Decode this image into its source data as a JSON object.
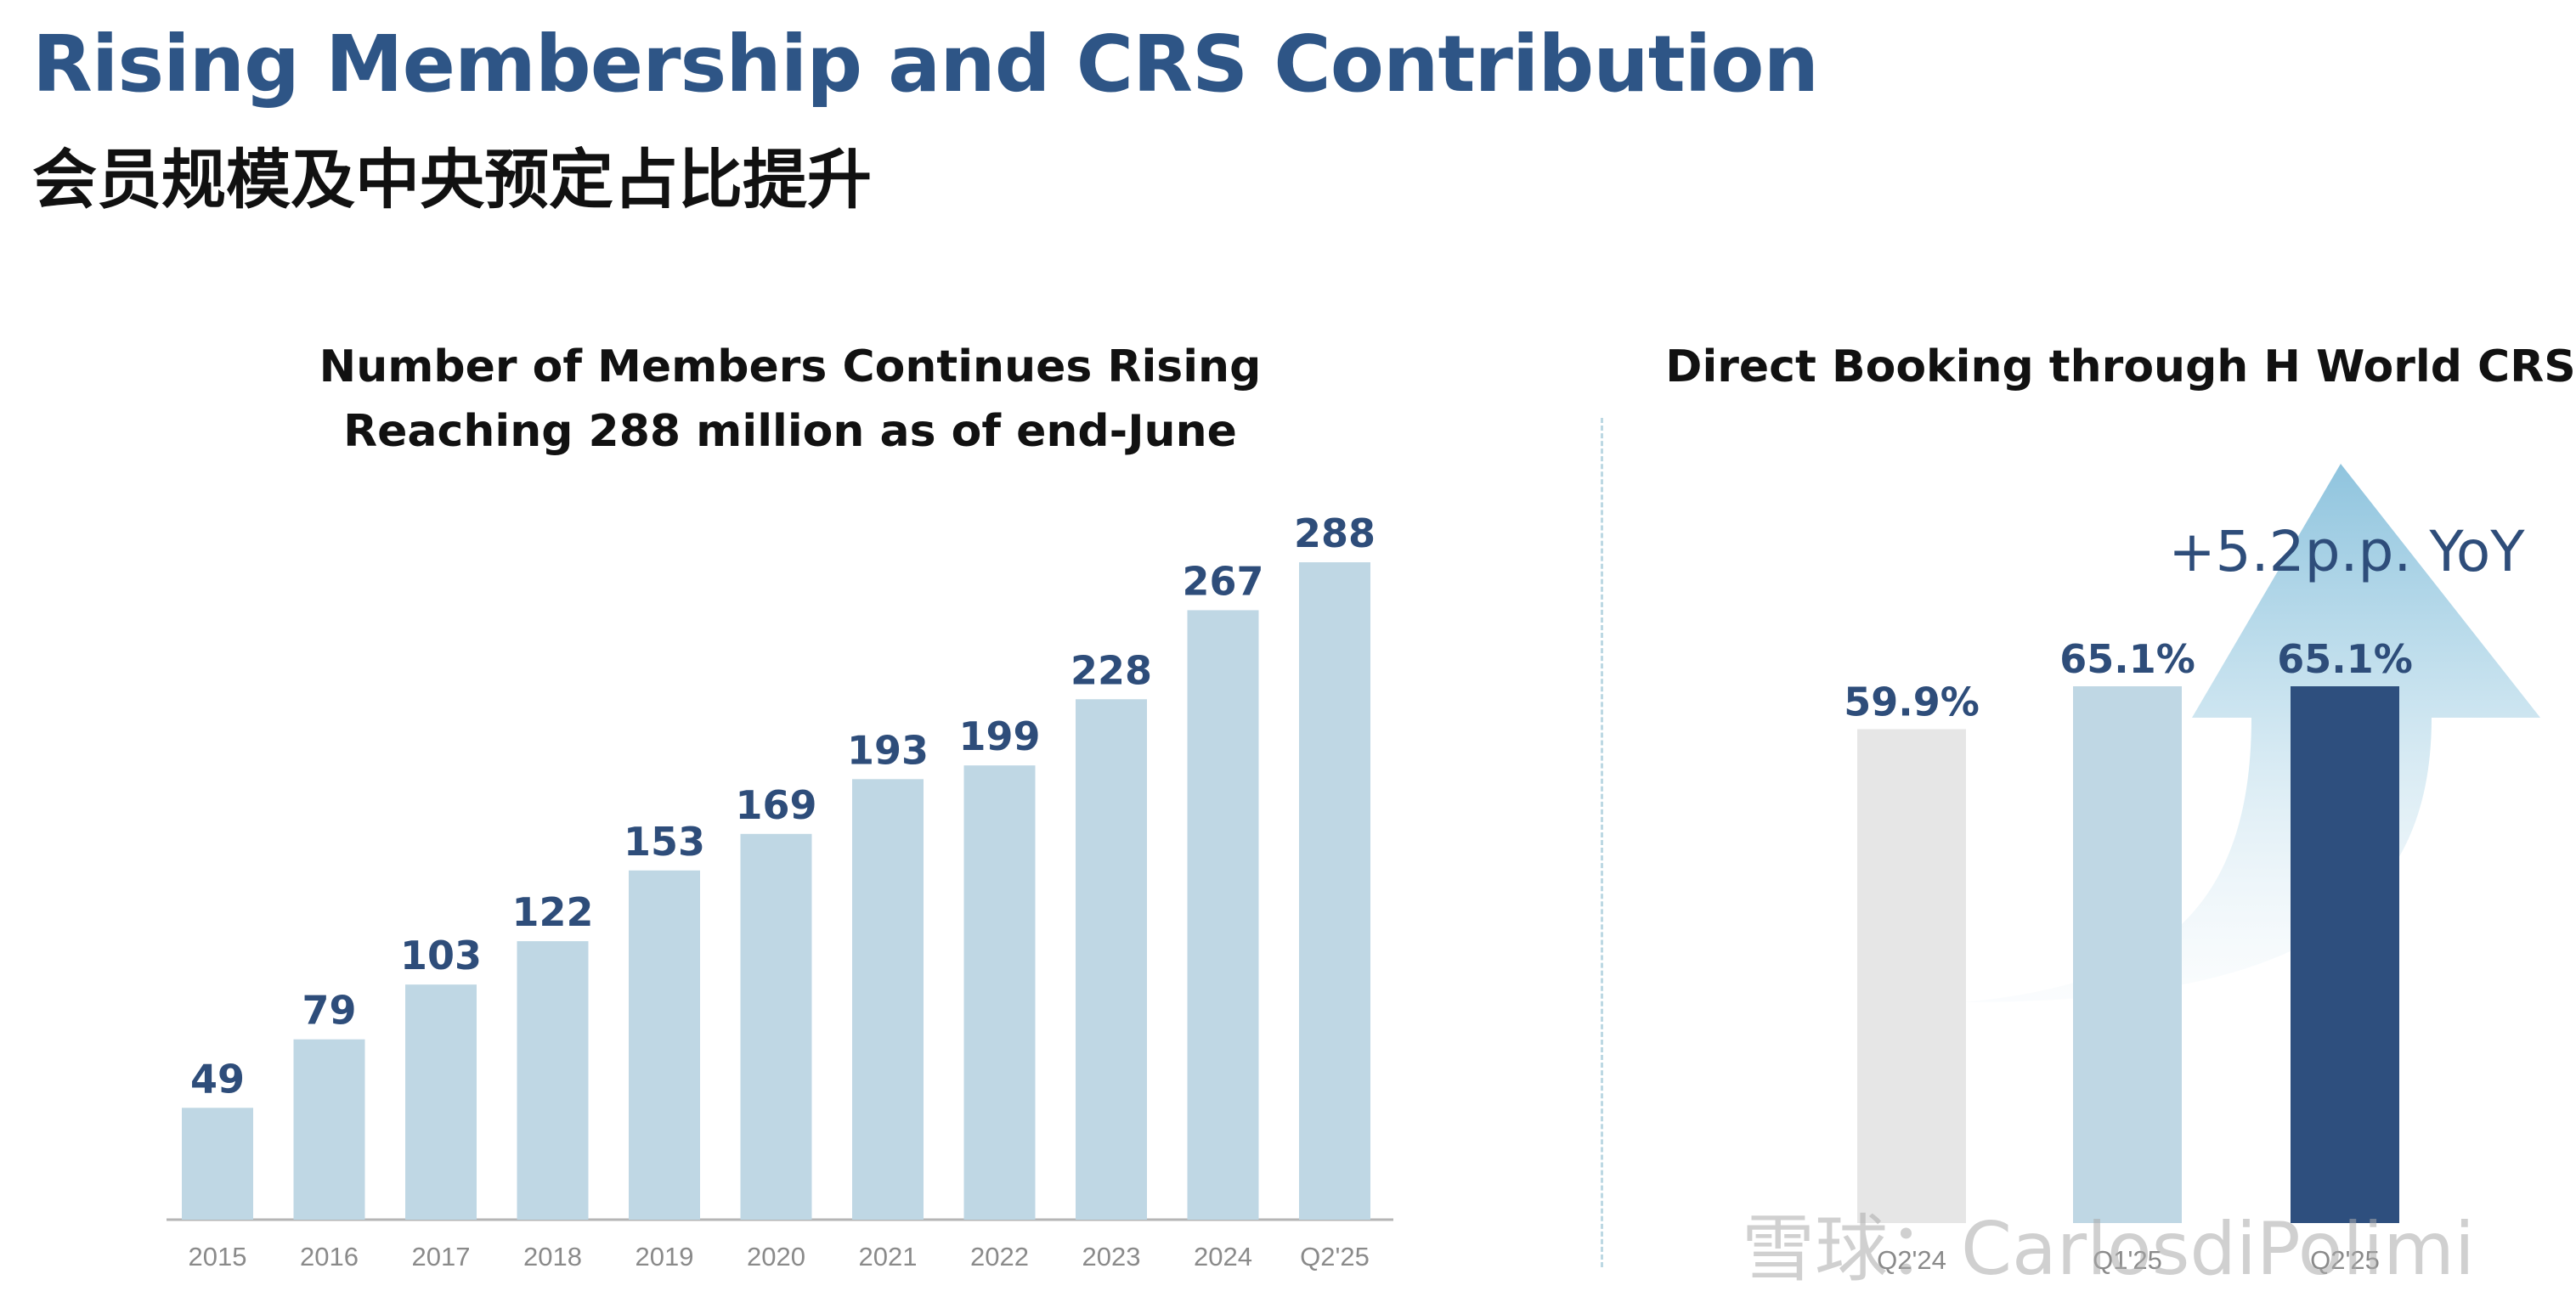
{
  "header": {
    "title_en": "Rising Membership and CRS Contribution",
    "title_zh": "会员规模及中央预定占比提升"
  },
  "chart_data": [
    {
      "type": "bar",
      "title": "Number of Members Continues Rising",
      "subtitle": "Reaching 288 million as of end-June",
      "categories": [
        "2015",
        "2016",
        "2017",
        "2018",
        "2019",
        "2020",
        "2021",
        "2022",
        "2023",
        "2024",
        "Q2'25"
      ],
      "values": [
        49,
        79,
        103,
        122,
        153,
        169,
        193,
        199,
        228,
        267,
        288
      ],
      "data_labels": [
        "49",
        "79",
        "103",
        "122",
        "153",
        "169",
        "193",
        "199",
        "228",
        "267",
        "288"
      ],
      "ylim": [
        0,
        288
      ],
      "grid": false,
      "bar_color": "#bfd7e4"
    },
    {
      "type": "bar",
      "title": "Direct Booking through H World CRS",
      "categories": [
        "Q2'24",
        "Q1'25",
        "Q2'25"
      ],
      "values": [
        59.9,
        65.1,
        65.1
      ],
      "data_labels": [
        "59.9%",
        "65.1%",
        "65.1%"
      ],
      "colors": [
        "#e6e6e6",
        "#bfd7e4",
        "#2e4f7e"
      ],
      "annotation": "+5.2p.p. YoY",
      "grid": false
    }
  ],
  "watermark": "雪球：CarlosdiPolimi"
}
